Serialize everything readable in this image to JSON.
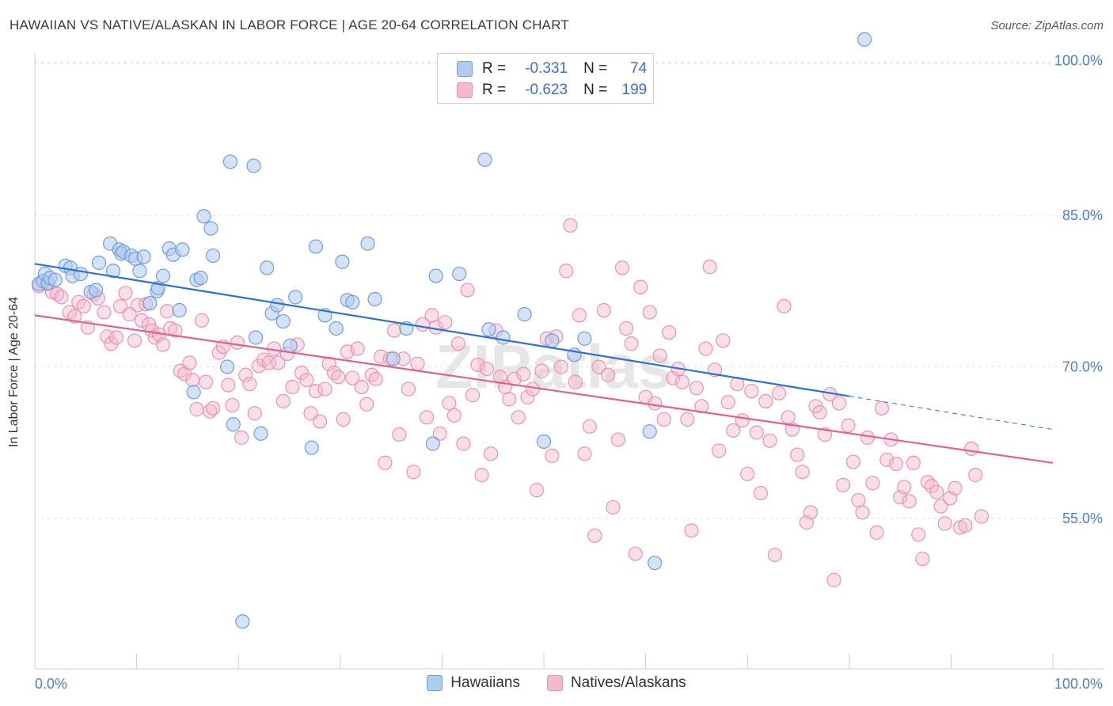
{
  "title": "HAWAIIAN VS NATIVE/ALASKAN IN LABOR FORCE | AGE 20-64 CORRELATION CHART",
  "source": "Source: ZipAtlas.com",
  "legend_top": [
    {
      "r_label": "R =",
      "r_value": "-0.331",
      "n_label": "N =",
      "n_value": "74"
    },
    {
      "r_label": "R =",
      "r_value": "-0.623",
      "n_label": "N =",
      "n_value": "199"
    }
  ],
  "colors": {
    "blue_fill": "#aecbf0",
    "blue_stroke": "#6f9fd8",
    "blue_line": "#2f6fd0",
    "pink_fill": "#f5b9cc",
    "pink_stroke": "#e993b0",
    "pink_line": "#e0608e",
    "grid": "#e2e2e2",
    "tick_text": "#4a7fd0"
  },
  "chart_data": {
    "type": "scatter",
    "title": "HAWAIIAN VS NATIVE/ALASKAN IN LABOR FORCE | AGE 20-64 CORRELATION CHART",
    "ylabel": "In Labor Force | Age 20-64",
    "xlabel": "",
    "x_tick_labels": [
      "0.0%",
      "100.0%"
    ],
    "y_tick_labels": [
      "100.0%",
      "85.0%",
      "70.0%",
      "55.0%"
    ],
    "y_ticks": [
      100,
      85,
      70,
      55
    ],
    "xlim": [
      0,
      100
    ],
    "ylim": [
      39,
      106
    ],
    "grid": true,
    "legend_placement": "bottom",
    "watermark": "ZIPatlas",
    "series": [
      {
        "name": "Hawaiians",
        "r": -0.331,
        "n": 74,
        "trend": {
          "x0": 0,
          "y0": 80.2,
          "x1": 80,
          "y1": 67.1,
          "dash_to_x": 100,
          "dash_to_y": 63.8
        },
        "points": [
          [
            0.4,
            78.2
          ],
          [
            0.8,
            78.5
          ],
          [
            1.0,
            79.2
          ],
          [
            1.3,
            78.3
          ],
          [
            1.5,
            78.8
          ],
          [
            2.0,
            78.6
          ],
          [
            3.0,
            80.0
          ],
          [
            3.5,
            79.8
          ],
          [
            3.7,
            79.0
          ],
          [
            4.5,
            79.2
          ],
          [
            5.5,
            77.4
          ],
          [
            6.0,
            77.6
          ],
          [
            6.3,
            80.3
          ],
          [
            7.4,
            82.2
          ],
          [
            7.7,
            79.5
          ],
          [
            8.3,
            81.6
          ],
          [
            8.5,
            81.2
          ],
          [
            8.7,
            81.4
          ],
          [
            9.5,
            81.0
          ],
          [
            9.9,
            80.7
          ],
          [
            10.3,
            79.5
          ],
          [
            10.7,
            80.9
          ],
          [
            11.3,
            76.3
          ],
          [
            12.0,
            77.5
          ],
          [
            12.1,
            77.8
          ],
          [
            12.6,
            79.0
          ],
          [
            13.2,
            81.7
          ],
          [
            13.6,
            81.1
          ],
          [
            14.2,
            75.6
          ],
          [
            14.5,
            81.6
          ],
          [
            15.6,
            67.5
          ],
          [
            15.9,
            78.6
          ],
          [
            16.3,
            78.8
          ],
          [
            16.6,
            84.9
          ],
          [
            17.3,
            83.7
          ],
          [
            17.5,
            81.0
          ],
          [
            18.9,
            70.0
          ],
          [
            19.2,
            90.3
          ],
          [
            19.5,
            64.3
          ],
          [
            20.4,
            44.8
          ],
          [
            21.5,
            89.9
          ],
          [
            21.7,
            72.9
          ],
          [
            22.2,
            63.4
          ],
          [
            22.8,
            79.8
          ],
          [
            23.3,
            75.3
          ],
          [
            23.8,
            76.1
          ],
          [
            24.4,
            74.5
          ],
          [
            25.1,
            72.1
          ],
          [
            25.6,
            76.9
          ],
          [
            27.2,
            62.0
          ],
          [
            27.6,
            81.9
          ],
          [
            28.5,
            75.1
          ],
          [
            29.6,
            73.8
          ],
          [
            30.2,
            80.4
          ],
          [
            30.7,
            76.6
          ],
          [
            31.2,
            76.4
          ],
          [
            32.7,
            82.2
          ],
          [
            33.4,
            76.7
          ],
          [
            35.2,
            70.8
          ],
          [
            36.5,
            73.8
          ],
          [
            39.1,
            62.4
          ],
          [
            39.4,
            79.0
          ],
          [
            41.7,
            79.2
          ],
          [
            44.2,
            90.5
          ],
          [
            44.6,
            73.7
          ],
          [
            46.0,
            72.9
          ],
          [
            48.1,
            75.2
          ],
          [
            50.0,
            62.6
          ],
          [
            50.8,
            72.6
          ],
          [
            53.0,
            71.2
          ],
          [
            54.0,
            72.8
          ],
          [
            60.4,
            63.6
          ],
          [
            60.9,
            50.6
          ],
          [
            81.5,
            102.4
          ]
        ]
      },
      {
        "name": "Natives/Alaskans",
        "r": -0.623,
        "n": 199,
        "trend": {
          "x0": 0,
          "y0": 75.1,
          "x1": 100,
          "y1": 60.5
        },
        "points": [
          [
            0.4,
            78.0
          ],
          [
            1.2,
            78.2
          ],
          [
            1.7,
            77.4
          ],
          [
            2.2,
            77.2
          ],
          [
            2.6,
            76.9
          ],
          [
            3.4,
            75.4
          ],
          [
            3.9,
            75.0
          ],
          [
            4.3,
            76.4
          ],
          [
            4.8,
            76.0
          ],
          [
            5.2,
            73.9
          ],
          [
            5.8,
            77.2
          ],
          [
            6.2,
            76.8
          ],
          [
            6.8,
            75.4
          ],
          [
            7.1,
            73.0
          ],
          [
            7.5,
            72.3
          ],
          [
            8.0,
            72.9
          ],
          [
            8.4,
            76.0
          ],
          [
            8.9,
            77.3
          ],
          [
            9.3,
            75.2
          ],
          [
            9.8,
            72.6
          ],
          [
            10.1,
            76.1
          ],
          [
            10.5,
            74.6
          ],
          [
            10.9,
            76.2
          ],
          [
            11.2,
            74.2
          ],
          [
            11.5,
            73.6
          ],
          [
            11.8,
            72.9
          ],
          [
            12.2,
            73.2
          ],
          [
            12.6,
            72.2
          ],
          [
            13.0,
            75.5
          ],
          [
            13.3,
            73.8
          ],
          [
            13.8,
            73.6
          ],
          [
            14.3,
            69.6
          ],
          [
            14.7,
            69.3
          ],
          [
            15.2,
            70.4
          ],
          [
            15.5,
            68.7
          ],
          [
            15.9,
            65.8
          ],
          [
            16.4,
            74.6
          ],
          [
            16.8,
            68.5
          ],
          [
            17.2,
            65.6
          ],
          [
            17.5,
            65.9
          ],
          [
            18.1,
            71.4
          ],
          [
            18.5,
            72.0
          ],
          [
            19.0,
            68.2
          ],
          [
            19.4,
            66.2
          ],
          [
            19.9,
            72.4
          ],
          [
            20.3,
            63.0
          ],
          [
            20.7,
            69.2
          ],
          [
            21.1,
            68.3
          ],
          [
            21.6,
            65.4
          ],
          [
            22.0,
            70.1
          ],
          [
            22.5,
            70.7
          ],
          [
            23.0,
            70.4
          ],
          [
            23.5,
            71.8
          ],
          [
            23.9,
            70.4
          ],
          [
            24.4,
            66.6
          ],
          [
            24.8,
            71.3
          ],
          [
            25.3,
            68.0
          ],
          [
            25.8,
            72.2
          ],
          [
            26.2,
            69.4
          ],
          [
            26.7,
            68.7
          ],
          [
            27.1,
            65.4
          ],
          [
            27.6,
            67.6
          ],
          [
            28.0,
            64.6
          ],
          [
            28.5,
            67.8
          ],
          [
            28.9,
            70.3
          ],
          [
            29.4,
            69.4
          ],
          [
            29.8,
            69.0
          ],
          [
            30.3,
            64.8
          ],
          [
            30.7,
            71.5
          ],
          [
            31.2,
            68.9
          ],
          [
            31.7,
            71.8
          ],
          [
            32.1,
            68.0
          ],
          [
            32.6,
            66.3
          ],
          [
            33.1,
            69.2
          ],
          [
            33.5,
            68.8
          ],
          [
            34.0,
            71.0
          ],
          [
            34.4,
            60.5
          ],
          [
            34.9,
            70.8
          ],
          [
            35.3,
            73.6
          ],
          [
            35.8,
            63.3
          ],
          [
            36.2,
            70.8
          ],
          [
            36.7,
            67.8
          ],
          [
            37.2,
            59.6
          ],
          [
            37.6,
            70.3
          ],
          [
            38.1,
            74.2
          ],
          [
            38.5,
            65.0
          ],
          [
            39.0,
            75.1
          ],
          [
            39.4,
            73.9
          ],
          [
            39.8,
            63.4
          ],
          [
            40.3,
            74.4
          ],
          [
            40.7,
            66.4
          ],
          [
            41.2,
            65.2
          ],
          [
            41.6,
            72.3
          ],
          [
            42.1,
            62.4
          ],
          [
            42.5,
            77.6
          ],
          [
            43.0,
            67.2
          ],
          [
            43.5,
            70.2
          ],
          [
            43.9,
            59.3
          ],
          [
            44.4,
            69.8
          ],
          [
            44.8,
            61.4
          ],
          [
            45.3,
            73.6
          ],
          [
            45.7,
            69.0
          ],
          [
            46.2,
            68.0
          ],
          [
            46.6,
            66.8
          ],
          [
            47.1,
            68.8
          ],
          [
            47.5,
            65.0
          ],
          [
            48.0,
            69.3
          ],
          [
            48.4,
            67.0
          ],
          [
            48.9,
            67.8
          ],
          [
            49.3,
            57.8
          ],
          [
            49.8,
            69.6
          ],
          [
            50.3,
            72.8
          ],
          [
            50.8,
            61.2
          ],
          [
            51.2,
            73.0
          ],
          [
            51.7,
            70.0
          ],
          [
            52.2,
            79.5
          ],
          [
            52.6,
            84.0
          ],
          [
            53.1,
            68.5
          ],
          [
            53.5,
            75.1
          ],
          [
            54.0,
            61.4
          ],
          [
            54.5,
            64.1
          ],
          [
            55.0,
            53.3
          ],
          [
            55.4,
            70.0
          ],
          [
            55.9,
            75.6
          ],
          [
            56.3,
            69.2
          ],
          [
            56.8,
            56.1
          ],
          [
            57.3,
            62.8
          ],
          [
            57.7,
            79.8
          ],
          [
            58.1,
            73.8
          ],
          [
            58.6,
            72.3
          ],
          [
            59.0,
            51.5
          ],
          [
            59.5,
            77.9
          ],
          [
            60.0,
            67.0
          ],
          [
            60.4,
            75.4
          ],
          [
            60.9,
            66.4
          ],
          [
            61.4,
            71.1
          ],
          [
            61.8,
            64.8
          ],
          [
            62.3,
            73.4
          ],
          [
            62.7,
            68.9
          ],
          [
            63.2,
            69.8
          ],
          [
            63.6,
            68.5
          ],
          [
            64.1,
            64.8
          ],
          [
            64.5,
            53.8
          ],
          [
            65.0,
            67.9
          ],
          [
            65.5,
            66.1
          ],
          [
            65.9,
            71.8
          ],
          [
            66.3,
            79.9
          ],
          [
            66.8,
            69.7
          ],
          [
            67.2,
            61.7
          ],
          [
            67.6,
            72.6
          ],
          [
            68.1,
            66.5
          ],
          [
            68.6,
            63.7
          ],
          [
            69.0,
            68.3
          ],
          [
            69.5,
            64.7
          ],
          [
            70.0,
            59.4
          ],
          [
            70.4,
            67.6
          ],
          [
            70.9,
            63.5
          ],
          [
            71.3,
            57.5
          ],
          [
            71.8,
            66.6
          ],
          [
            72.2,
            62.7
          ],
          [
            72.7,
            51.4
          ],
          [
            73.1,
            67.4
          ],
          [
            73.6,
            76.0
          ],
          [
            74.0,
            65.0
          ],
          [
            74.4,
            63.8
          ],
          [
            74.9,
            61.3
          ],
          [
            75.4,
            59.6
          ],
          [
            75.8,
            54.6
          ],
          [
            76.2,
            55.6
          ],
          [
            76.7,
            66.1
          ],
          [
            77.1,
            65.5
          ],
          [
            77.6,
            63.3
          ],
          [
            78.1,
            67.3
          ],
          [
            78.5,
            48.9
          ],
          [
            79.0,
            66.4
          ],
          [
            79.4,
            58.3
          ],
          [
            79.9,
            64.2
          ],
          [
            80.4,
            60.6
          ],
          [
            80.9,
            56.8
          ],
          [
            81.3,
            55.6
          ],
          [
            81.8,
            63.0
          ],
          [
            82.3,
            58.5
          ],
          [
            82.7,
            53.6
          ],
          [
            83.2,
            65.9
          ],
          [
            83.7,
            60.8
          ],
          [
            84.1,
            62.8
          ],
          [
            84.6,
            60.4
          ],
          [
            85.0,
            57.1
          ],
          [
            85.4,
            58.1
          ],
          [
            85.9,
            56.7
          ],
          [
            86.3,
            60.5
          ],
          [
            86.8,
            53.4
          ],
          [
            87.2,
            51.0
          ],
          [
            87.7,
            58.6
          ],
          [
            88.1,
            58.2
          ],
          [
            88.6,
            57.6
          ],
          [
            89.0,
            56.2
          ],
          [
            89.4,
            54.5
          ],
          [
            89.9,
            57.0
          ],
          [
            90.4,
            58.0
          ],
          [
            90.9,
            54.1
          ],
          [
            91.4,
            54.3
          ],
          [
            92.0,
            61.9
          ],
          [
            92.4,
            59.3
          ],
          [
            93.0,
            55.2
          ]
        ]
      }
    ]
  }
}
